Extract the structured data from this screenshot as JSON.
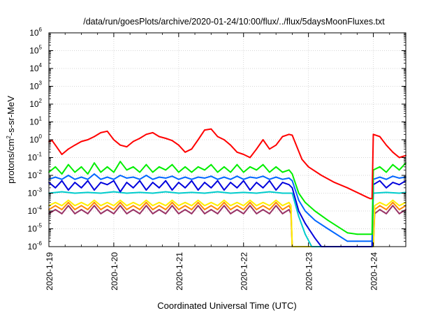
{
  "chart_data": {
    "type": "line",
    "title": "/data/run/goesPlots/archive/2020-01-24/10:00/flux/../flux/5daysMoonFluxes.txt",
    "xlabel": "Coordinated Universal Time (UTC)",
    "ylabel": "protons/cm2-s-sr-MeV",
    "ylabel_parts": {
      "base": "protons/cm",
      "exp": "2",
      "rest": "-s-sr-MeV"
    },
    "x_ticks": [
      "2020-1-19",
      "2020-1-20",
      "2020-1-21",
      "2020-1-22",
      "2020-1-23",
      "2020-1-24"
    ],
    "xlim": [
      0,
      5.5
    ],
    "y_scale": "log",
    "ylim": [
      1e-06,
      1000000.0
    ],
    "y_ticks": [
      {
        "base": "10",
        "exp": "-6"
      },
      {
        "base": "10",
        "exp": "-5"
      },
      {
        "base": "10",
        "exp": "-4"
      },
      {
        "base": "10",
        "exp": "-3"
      },
      {
        "base": "10",
        "exp": "-2"
      },
      {
        "base": "10",
        "exp": "-1"
      },
      {
        "base": "10",
        "exp": "0"
      },
      {
        "base": "10",
        "exp": "1"
      },
      {
        "base": "10",
        "exp": "2"
      },
      {
        "base": "10",
        "exp": "3"
      },
      {
        "base": "10",
        "exp": "4"
      },
      {
        "base": "10",
        "exp": "5"
      },
      {
        "base": "10",
        "exp": "6"
      }
    ],
    "grid": true,
    "series": [
      {
        "color": "#ff0000",
        "x": [
          0,
          0.05,
          0.1,
          0.2,
          0.3,
          0.4,
          0.5,
          0.6,
          0.7,
          0.8,
          0.9,
          1.0,
          1.1,
          1.2,
          1.3,
          1.4,
          1.5,
          1.6,
          1.7,
          1.8,
          1.9,
          2.0,
          2.1,
          2.2,
          2.3,
          2.4,
          2.5,
          2.6,
          2.7,
          2.8,
          2.9,
          3.0,
          3.1,
          3.2,
          3.3,
          3.4,
          3.5,
          3.6,
          3.7,
          3.75,
          3.9,
          4.0,
          4.2,
          4.4,
          4.6,
          4.8,
          4.9,
          4.95,
          4.98,
          5.0,
          5.1,
          5.2,
          5.3,
          5.4,
          5.5
        ],
        "y": [
          0.8,
          0.9,
          0.5,
          0.15,
          0.3,
          0.5,
          0.8,
          1.0,
          1.5,
          2.5,
          3.0,
          1.0,
          0.5,
          0.4,
          0.8,
          1.2,
          2.0,
          2.5,
          1.5,
          1.2,
          0.9,
          0.5,
          0.2,
          0.3,
          1.0,
          3.5,
          4.0,
          1.5,
          1.0,
          0.5,
          0.2,
          0.15,
          0.1,
          0.3,
          1.0,
          0.3,
          0.5,
          1.5,
          2.0,
          1.8,
          0.08,
          0.03,
          0.01,
          0.004,
          0.002,
          0.0009,
          0.0006,
          0.0005,
          0.0005,
          2.0,
          1.5,
          0.5,
          0.2,
          0.1,
          0.13
        ]
      },
      {
        "color": "#00ee00",
        "x": [
          0,
          0.1,
          0.2,
          0.3,
          0.4,
          0.5,
          0.6,
          0.7,
          0.8,
          0.9,
          1.0,
          1.1,
          1.2,
          1.3,
          1.4,
          1.5,
          1.6,
          1.7,
          1.8,
          1.9,
          2.0,
          2.1,
          2.2,
          2.3,
          2.4,
          2.5,
          2.6,
          2.7,
          2.8,
          2.9,
          3.0,
          3.1,
          3.2,
          3.3,
          3.4,
          3.5,
          3.6,
          3.7,
          3.75,
          3.85,
          3.95,
          4.1,
          4.3,
          4.6,
          4.75,
          4.98,
          5.0,
          5.1,
          5.2,
          5.3,
          5.4,
          5.5
        ],
        "y": [
          0.015,
          0.03,
          0.012,
          0.04,
          0.015,
          0.03,
          0.012,
          0.05,
          0.015,
          0.03,
          0.015,
          0.06,
          0.02,
          0.03,
          0.015,
          0.04,
          0.015,
          0.03,
          0.02,
          0.04,
          0.015,
          0.03,
          0.015,
          0.03,
          0.02,
          0.04,
          0.015,
          0.03,
          0.015,
          0.04,
          0.015,
          0.03,
          0.02,
          0.04,
          0.015,
          0.03,
          0.015,
          0.02,
          0.012,
          0.001,
          0.0003,
          0.0001,
          3e-05,
          6e-06,
          5e-06,
          5e-06,
          0.02,
          0.03,
          0.015,
          0.04,
          0.02,
          0.05
        ]
      },
      {
        "color": "#0066ff",
        "x": [
          0,
          0.1,
          0.2,
          0.3,
          0.4,
          0.5,
          0.6,
          0.7,
          0.8,
          0.9,
          1.0,
          1.1,
          1.2,
          1.3,
          1.4,
          1.5,
          1.6,
          1.7,
          1.8,
          1.9,
          2.0,
          2.1,
          2.2,
          2.3,
          2.4,
          2.5,
          2.6,
          2.7,
          2.8,
          2.9,
          3.0,
          3.1,
          3.2,
          3.3,
          3.4,
          3.5,
          3.6,
          3.7,
          3.75,
          3.85,
          3.95,
          4.1,
          4.3,
          4.6,
          4.75,
          4.98,
          5.0,
          5.1,
          5.2,
          5.3,
          5.4,
          5.5
        ],
        "y": [
          0.006,
          0.008,
          0.006,
          0.01,
          0.006,
          0.008,
          0.006,
          0.012,
          0.006,
          0.008,
          0.006,
          0.01,
          0.007,
          0.008,
          0.006,
          0.01,
          0.006,
          0.008,
          0.007,
          0.009,
          0.006,
          0.008,
          0.006,
          0.008,
          0.007,
          0.009,
          0.006,
          0.008,
          0.006,
          0.009,
          0.006,
          0.008,
          0.007,
          0.009,
          0.006,
          0.008,
          0.006,
          0.007,
          0.005,
          0.0004,
          0.0001,
          3e-05,
          1e-05,
          2e-06,
          2e-06,
          2e-06,
          0.006,
          0.008,
          0.006,
          0.009,
          0.007,
          0.008
        ]
      },
      {
        "color": "#0000dd",
        "x": [
          0,
          0.1,
          0.2,
          0.3,
          0.4,
          0.5,
          0.6,
          0.7,
          0.8,
          0.9,
          1.0,
          1.1,
          1.2,
          1.3,
          1.4,
          1.5,
          1.6,
          1.7,
          1.8,
          1.9,
          2.0,
          2.1,
          2.2,
          2.3,
          2.4,
          2.5,
          2.6,
          2.7,
          2.8,
          2.9,
          3.0,
          3.1,
          3.2,
          3.3,
          3.4,
          3.5,
          3.6,
          3.7,
          3.75,
          3.85,
          3.95,
          4.1,
          4.2,
          4.3,
          4.98,
          5.0,
          5.1,
          5.2,
          5.3,
          5.4,
          5.5
        ],
        "y": [
          0.004,
          0.002,
          0.005,
          0.0015,
          0.004,
          0.002,
          0.005,
          0.0015,
          0.004,
          0.003,
          0.005,
          0.0012,
          0.004,
          0.002,
          0.005,
          0.0015,
          0.004,
          0.002,
          0.005,
          0.0015,
          0.004,
          0.002,
          0.005,
          0.0015,
          0.004,
          0.002,
          0.005,
          0.0015,
          0.004,
          0.002,
          0.005,
          0.0015,
          0.004,
          0.002,
          0.005,
          0.0015,
          0.004,
          0.003,
          0.002,
          0.0001,
          2e-05,
          3e-06,
          1e-06,
          1e-06,
          1e-06,
          0.003,
          0.005,
          0.002,
          0.004,
          0.003,
          0.005
        ]
      },
      {
        "color": "#00cccc",
        "x": [
          0,
          0.2,
          0.4,
          0.6,
          0.8,
          1.0,
          1.2,
          1.4,
          1.6,
          1.8,
          2.0,
          2.2,
          2.4,
          2.6,
          2.8,
          3.0,
          3.2,
          3.4,
          3.6,
          3.75,
          3.85,
          3.95,
          4.05,
          4.15,
          4.98,
          5.0,
          5.2,
          5.4,
          5.5
        ],
        "y": [
          0.001,
          0.0012,
          0.001,
          0.0011,
          0.001,
          0.0012,
          0.001,
          0.0011,
          0.001,
          0.0012,
          0.001,
          0.0011,
          0.001,
          0.0012,
          0.001,
          0.0011,
          0.001,
          0.0012,
          0.001,
          0.001,
          5e-05,
          5e-06,
          1e-06,
          1e-06,
          1e-06,
          0.001,
          0.0011,
          0.001,
          0.0011
        ]
      },
      {
        "color": "#ffee00",
        "x": [
          0,
          0.1,
          0.2,
          0.3,
          0.4,
          0.5,
          0.6,
          0.7,
          0.8,
          0.9,
          1.0,
          1.1,
          1.2,
          1.3,
          1.4,
          1.5,
          1.6,
          1.7,
          1.8,
          1.9,
          2.0,
          2.1,
          2.2,
          2.3,
          2.4,
          2.5,
          2.6,
          2.7,
          2.8,
          2.9,
          3.0,
          3.1,
          3.2,
          3.3,
          3.4,
          3.5,
          3.6,
          3.7,
          3.73,
          3.75,
          3.98,
          5.0,
          5.02,
          5.1,
          5.2,
          5.3,
          5.4,
          5.5
        ],
        "y": [
          0.0002,
          0.0003,
          0.0002,
          0.0004,
          0.0002,
          0.0003,
          0.0002,
          0.0004,
          0.0002,
          0.0003,
          0.0002,
          0.0004,
          0.0002,
          0.0003,
          0.0002,
          0.0004,
          0.0002,
          0.0003,
          0.0002,
          0.0004,
          0.0002,
          0.0003,
          0.0002,
          0.0004,
          0.0002,
          0.0003,
          0.0002,
          0.0004,
          0.0002,
          0.0003,
          0.0002,
          0.0004,
          0.0002,
          0.0003,
          0.0002,
          0.0004,
          0.0002,
          0.0003,
          0.0002,
          1e-06,
          1e-06,
          1e-06,
          0.0002,
          0.0003,
          0.0002,
          0.0004,
          0.0002,
          0.0003
        ]
      },
      {
        "color": "#ff8800",
        "x": [
          0,
          0.1,
          0.2,
          0.3,
          0.4,
          0.5,
          0.6,
          0.7,
          0.8,
          0.9,
          1.0,
          1.1,
          1.2,
          1.3,
          1.4,
          1.5,
          1.6,
          1.7,
          1.8,
          1.9,
          2.0,
          2.1,
          2.2,
          2.3,
          2.4,
          2.5,
          2.6,
          2.7,
          2.8,
          2.9,
          3.0,
          3.1,
          3.2,
          3.3,
          3.4,
          3.5,
          3.6,
          3.7,
          3.73,
          3.75,
          3.98,
          5.0,
          5.02,
          5.1,
          5.2,
          5.3,
          5.4,
          5.5
        ],
        "y": [
          0.00012,
          0.0002,
          0.00012,
          0.0003,
          0.00012,
          0.0002,
          0.00012,
          0.0003,
          0.00012,
          0.0002,
          0.00012,
          0.0003,
          0.00012,
          0.0002,
          0.00012,
          0.0003,
          0.00012,
          0.0002,
          0.00012,
          0.0003,
          0.00012,
          0.0002,
          0.00012,
          0.0003,
          0.00012,
          0.0002,
          0.00012,
          0.0003,
          0.00012,
          0.0002,
          0.00012,
          0.0003,
          0.00012,
          0.0002,
          0.00012,
          0.0003,
          0.00012,
          0.0002,
          0.00012,
          1e-06,
          1e-06,
          1e-06,
          0.00012,
          0.0002,
          0.00012,
          0.0003,
          0.00012,
          0.0002
        ]
      },
      {
        "color": "#993366",
        "x": [
          0,
          0.1,
          0.2,
          0.3,
          0.4,
          0.5,
          0.6,
          0.7,
          0.8,
          0.9,
          1.0,
          1.1,
          1.2,
          1.3,
          1.4,
          1.5,
          1.6,
          1.7,
          1.8,
          1.9,
          2.0,
          2.1,
          2.2,
          2.3,
          2.4,
          2.5,
          2.6,
          2.7,
          2.8,
          2.9,
          3.0,
          3.1,
          3.2,
          3.3,
          3.4,
          3.5,
          3.6,
          3.7,
          3.73,
          3.75,
          3.98,
          5.0,
          5.02,
          5.1,
          5.2,
          5.3,
          5.4,
          5.5
        ],
        "y": [
          7e-05,
          0.00012,
          7e-05,
          0.0002,
          7e-05,
          0.00012,
          7e-05,
          0.0002,
          7e-05,
          0.00012,
          7e-05,
          0.0002,
          7e-05,
          0.00012,
          7e-05,
          0.0002,
          7e-05,
          0.00012,
          7e-05,
          0.0002,
          7e-05,
          0.00012,
          7e-05,
          0.0002,
          7e-05,
          0.00012,
          7e-05,
          0.0002,
          7e-05,
          0.00012,
          7e-05,
          0.0002,
          7e-05,
          0.00012,
          7e-05,
          0.0002,
          7e-05,
          0.00012,
          7e-05,
          1e-06,
          1e-06,
          1e-06,
          7e-05,
          0.00012,
          7e-05,
          0.0002,
          7e-05,
          0.00012
        ]
      }
    ]
  }
}
